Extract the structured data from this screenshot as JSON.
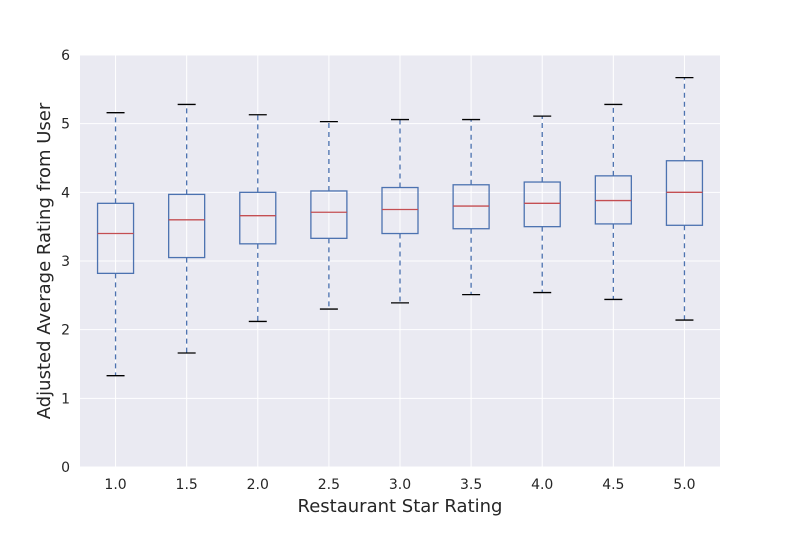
{
  "chart_data": {
    "type": "box",
    "title": "",
    "xlabel": "Restaurant Star Rating",
    "ylabel": "Adjusted Average Rating from User",
    "ylim": [
      0,
      6
    ],
    "y_ticks": [
      "0",
      "1",
      "2",
      "3",
      "4",
      "5",
      "6"
    ],
    "grid": true,
    "categories": [
      "1.0",
      "1.5",
      "2.0",
      "2.5",
      "3.0",
      "3.5",
      "4.0",
      "4.5",
      "5.0"
    ],
    "boxes": [
      {
        "whisker_low": 1.33,
        "q1": 2.82,
        "median": 3.4,
        "q3": 3.84,
        "whisker_high": 5.16
      },
      {
        "whisker_low": 1.66,
        "q1": 3.05,
        "median": 3.6,
        "q3": 3.97,
        "whisker_high": 5.28
      },
      {
        "whisker_low": 2.12,
        "q1": 3.25,
        "median": 3.66,
        "q3": 4.0,
        "whisker_high": 5.13
      },
      {
        "whisker_low": 2.3,
        "q1": 3.33,
        "median": 3.71,
        "q3": 4.02,
        "whisker_high": 5.03
      },
      {
        "whisker_low": 2.39,
        "q1": 3.4,
        "median": 3.75,
        "q3": 4.07,
        "whisker_high": 5.06
      },
      {
        "whisker_low": 2.51,
        "q1": 3.47,
        "median": 3.8,
        "q3": 4.11,
        "whisker_high": 5.06
      },
      {
        "whisker_low": 2.54,
        "q1": 3.5,
        "median": 3.84,
        "q3": 4.15,
        "whisker_high": 5.11
      },
      {
        "whisker_low": 2.44,
        "q1": 3.54,
        "median": 3.88,
        "q3": 4.24,
        "whisker_high": 5.28
      },
      {
        "whisker_low": 2.14,
        "q1": 3.52,
        "median": 4.0,
        "q3": 4.46,
        "whisker_high": 5.67
      }
    ],
    "colors": {
      "background": "#eaeaf2",
      "grid": "#ffffff",
      "box": "#4c72b0",
      "median": "#c44e52",
      "cap": "#000000"
    }
  }
}
